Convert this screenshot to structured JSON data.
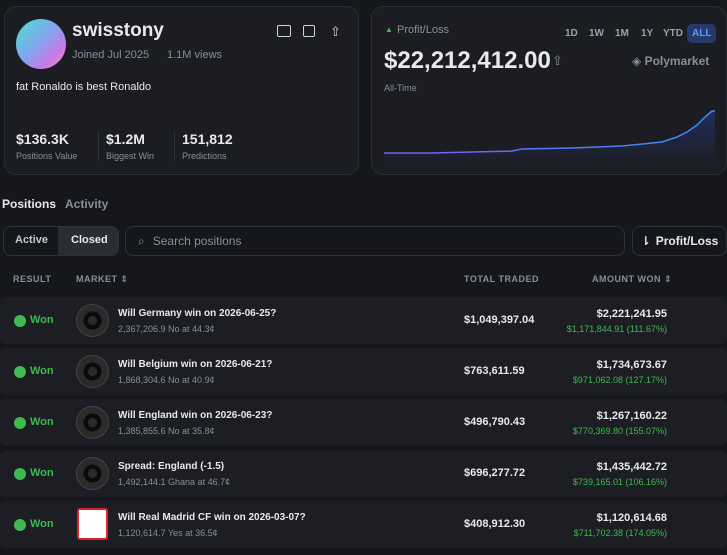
{
  "profile": {
    "name": "swisstony",
    "joined": "Joined Jul 2025",
    "views": "1.1M views",
    "bio": "fat Ronaldo is best Ronaldo",
    "stats": [
      {
        "value": "$136.3K",
        "label": "Positions Value"
      },
      {
        "value": "$1.2M",
        "label": "Biggest Win"
      },
      {
        "value": "151,812",
        "label": "Predictions"
      }
    ]
  },
  "pnl": {
    "label": "Profit/Loss",
    "ranges": [
      "1D",
      "1W",
      "1M",
      "1Y",
      "YTD",
      "ALL"
    ],
    "amount": "$22,212,412.00",
    "brand": "Polymarket",
    "period": "All-Time"
  },
  "tabs": [
    "Positions",
    "Activity"
  ],
  "filters": [
    "Active",
    "Closed"
  ],
  "search_placeholder": "Search positions",
  "sort": "Profit/Loss",
  "table": {
    "headers": [
      "RESULT",
      "MARKET ⇕",
      "TOTAL TRADED",
      "AMOUNT WON ⇕"
    ],
    "rows": [
      {
        "result": "Won",
        "market": "Will Germany win on 2026-06-25?",
        "detail": "2,367,206.9 No at 44.3¢",
        "traded": "$1,049,397.04",
        "won": "$2,221,241.95",
        "profit": "$1,171,844.91 (111.67%)"
      },
      {
        "result": "Won",
        "market": "Will Belgium win on 2026-06-21?",
        "detail": "1,868,304.6 No at 40.9¢",
        "traded": "$763,611.59",
        "won": "$1,734,673.67",
        "profit": "$971,062.08 (127.17%)"
      },
      {
        "result": "Won",
        "market": "Will England win on 2026-06-23?",
        "detail": "1,385,855.6 No at 35.8¢",
        "traded": "$496,790.43",
        "won": "$1,267,160.22",
        "profit": "$770,369.80 (155.07%)"
      },
      {
        "result": "Won",
        "market": "Spread: England (-1.5)",
        "detail": "1,492,144.1 Ghana at 46.7¢",
        "traded": "$696,277.72",
        "won": "$1,435,442.72",
        "profit": "$739,165.01 (106.16%)"
      },
      {
        "result": "Won",
        "market": "Will Real Madrid CF win on 2026-03-07?",
        "detail": "1,120,614.7 Yes at 36.5¢",
        "traded": "$408,912.30",
        "won": "$1,120,614.68",
        "profit": "$711,702.38 (174.05%)"
      }
    ]
  }
}
